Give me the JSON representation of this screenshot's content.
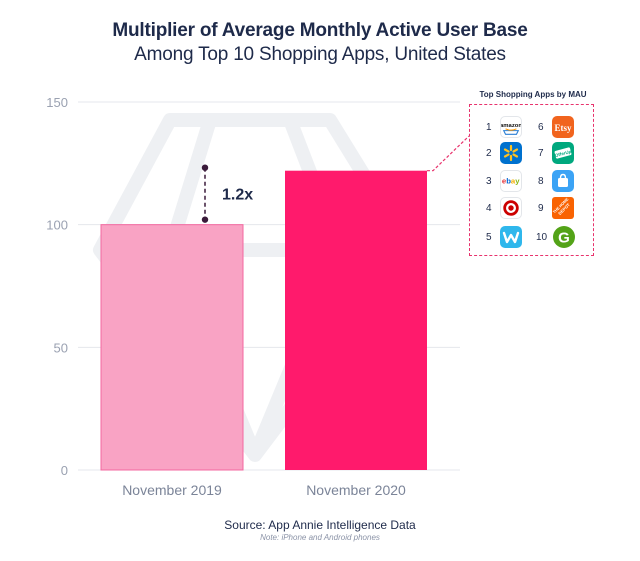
{
  "chart_data": {
    "type": "bar",
    "title": "Multiplier of Average Monthly Active User Base",
    "subtitle": "Among Top 10 Shopping Apps, United States",
    "categories": [
      "November 2019",
      "November 2020"
    ],
    "values": [
      100,
      122
    ],
    "ylim": [
      0,
      150
    ],
    "yticks": [
      0,
      50,
      100,
      150
    ],
    "colors": [
      "#f9a3c4",
      "#ff1a6c"
    ],
    "annotation": "1.2x",
    "xlabel": "",
    "ylabel": ""
  },
  "legend": {
    "title": "Top Shopping Apps by MAU",
    "apps": [
      {
        "rank": "1",
        "name": "amazon",
        "icon": "amazon-icon",
        "color": "#ffffff"
      },
      {
        "rank": "2",
        "name": "walmart",
        "icon": "walmart-icon",
        "color": "#0071ce"
      },
      {
        "rank": "3",
        "name": "ebay",
        "icon": "ebay-icon",
        "color": "#ffffff"
      },
      {
        "rank": "4",
        "name": "target",
        "icon": "target-icon",
        "color": "#ffffff"
      },
      {
        "rank": "5",
        "name": "wish",
        "icon": "wish-icon",
        "color": "#2fb7ec"
      },
      {
        "rank": "6",
        "name": "Etsy",
        "icon": "etsy-icon",
        "color": "#f1641e"
      },
      {
        "rank": "7",
        "name": "Offerup",
        "icon": "offerup-icon",
        "color": "#00a87e"
      },
      {
        "rank": "8",
        "name": "shop",
        "icon": "shopping-bag-icon",
        "color": "#3ba3f5"
      },
      {
        "rank": "9",
        "name": "THE HOME DEPOT",
        "icon": "home-depot-icon",
        "color": "#f96302"
      },
      {
        "rank": "10",
        "name": "G",
        "icon": "groupon-icon",
        "color": "#53a318"
      }
    ]
  },
  "footer": {
    "source": "Source: App Annie Intelligence Data",
    "note": "Note: iPhone and Android phones"
  }
}
